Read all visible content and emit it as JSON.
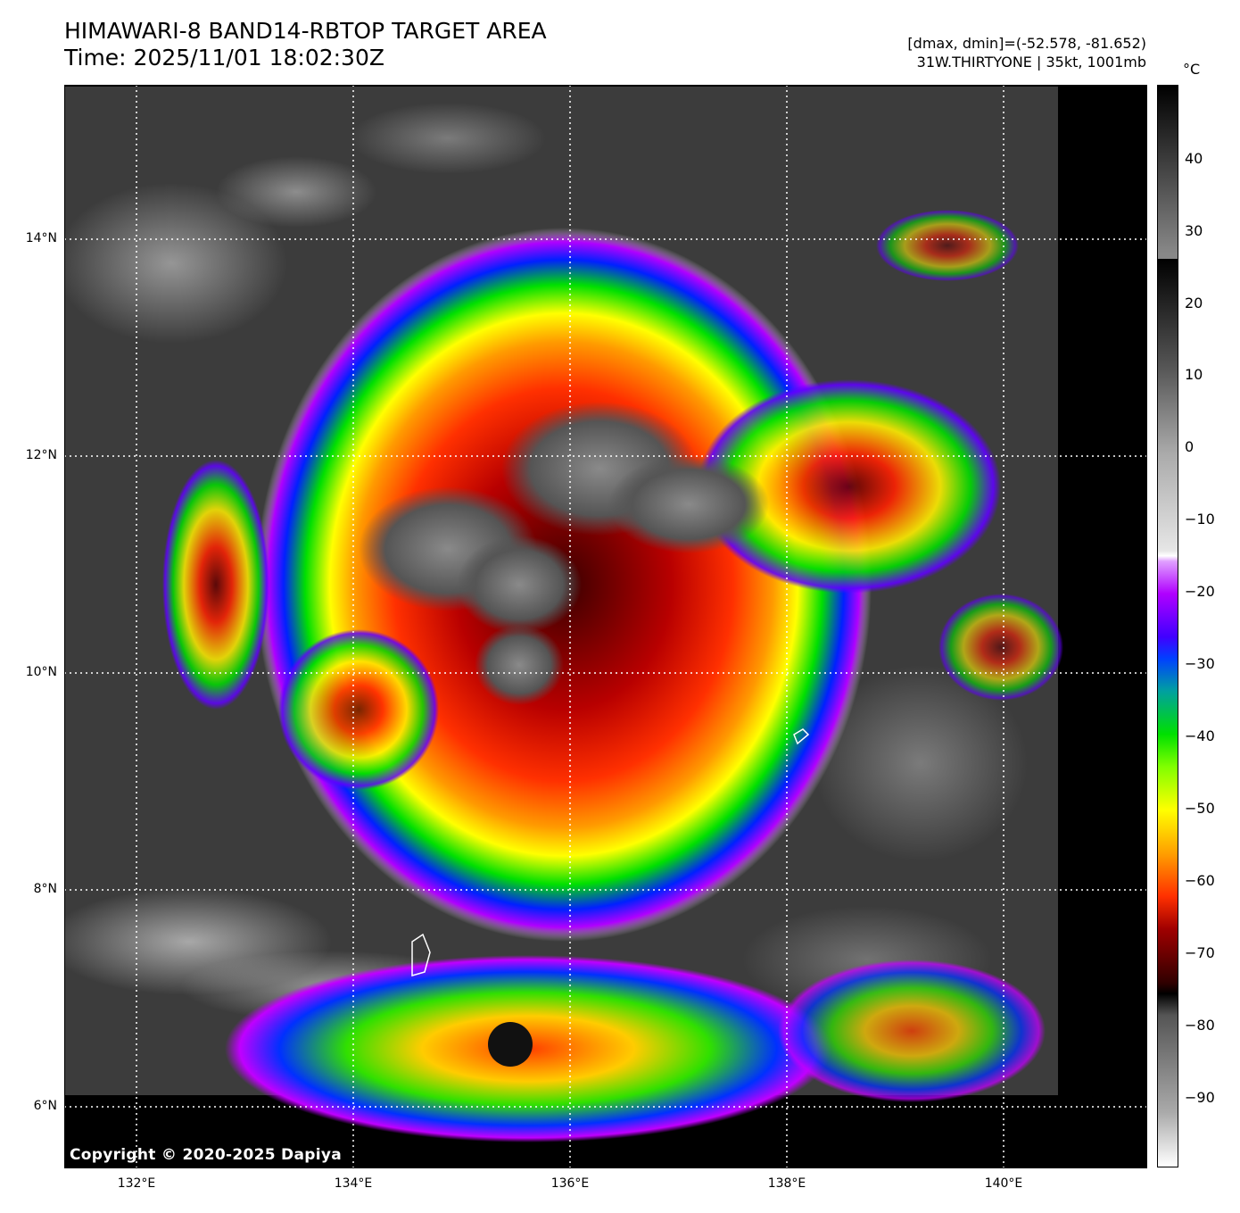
{
  "header": {
    "title_line1": "HIMAWARI-8 BAND14-RBTOP TARGET AREA",
    "title_line2": "Time: 2025/11/01 18:02:30Z",
    "info_line1": "[dmax, dmin]=(-52.578, -81.652)",
    "info_line2": "31W.THIRTYONE | 35kt, 1001mb"
  },
  "map": {
    "lat_labels": [
      "14°N",
      "12°N",
      "10°N",
      "8°N",
      "6°N"
    ],
    "lon_labels": [
      "132°E",
      "134°E",
      "136°E",
      "138°E",
      "140°E"
    ],
    "copyright": "Copyright © 2020-2025 Dapiya"
  },
  "colorbar": {
    "unit": "°C",
    "ticks": [
      "40",
      "30",
      "20",
      "10",
      "0",
      "−10",
      "−20",
      "−30",
      "−40",
      "−50",
      "−60",
      "−70",
      "−80",
      "−90"
    ]
  }
}
